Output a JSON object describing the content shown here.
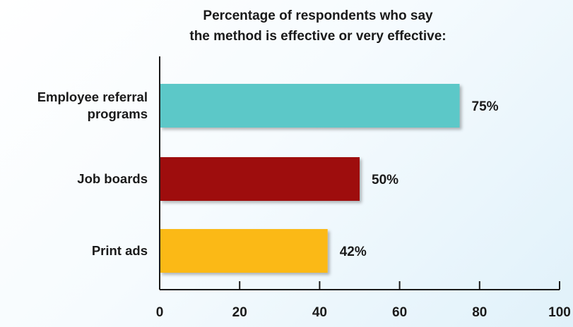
{
  "chart_data": {
    "type": "bar",
    "orientation": "horizontal",
    "title_lines": [
      "Percentage of respondents who say",
      "the method is effective or very effective:"
    ],
    "categories": [
      [
        "Employee referral",
        "programs"
      ],
      [
        "Job boards"
      ],
      [
        "Print ads"
      ]
    ],
    "values": [
      75,
      50,
      42
    ],
    "value_labels": [
      "75%",
      "50%",
      "42%"
    ],
    "colors": [
      "#5bc8c8",
      "#9e0b11",
      "#fbb917"
    ],
    "xlim": [
      0,
      100
    ],
    "xticks": [
      0,
      20,
      40,
      60,
      80,
      100
    ],
    "grid": false,
    "legend": "none"
  }
}
